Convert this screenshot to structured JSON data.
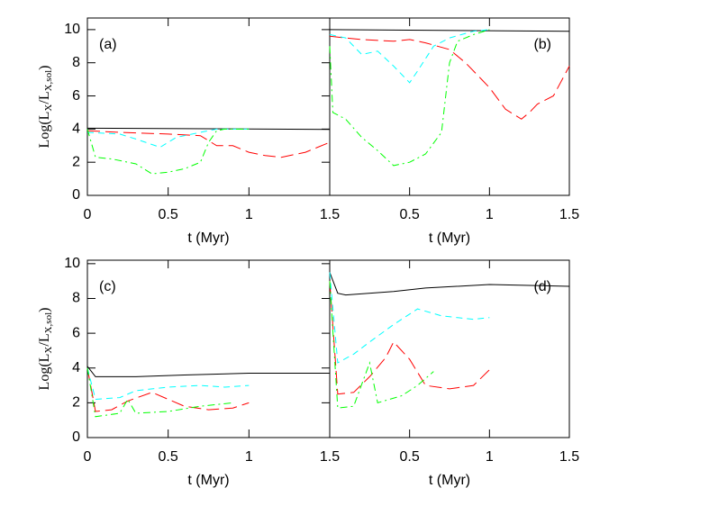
{
  "chart_data": [
    {
      "type": "line",
      "annotation": "(a)",
      "xlabel": "t (Myr)",
      "ylabel": [
        "Log(L",
        "X",
        "/L",
        "X,sol",
        ")"
      ],
      "xlim": [
        0,
        1.5
      ],
      "ylim": [
        0,
        10.7
      ],
      "xticks": [
        0,
        0.5,
        1,
        1.5
      ],
      "yticks": [
        0,
        2,
        4,
        6,
        8,
        10
      ],
      "series": [
        {
          "color": "#000000",
          "dash": "solid",
          "x": [
            0,
            1.5
          ],
          "values": [
            4.05,
            3.98
          ]
        },
        {
          "color": "#ff0000",
          "dash": "long-dash",
          "x": [
            0,
            0.2,
            0.5,
            0.7,
            0.8,
            0.9,
            1.0,
            1.1,
            1.2,
            1.35,
            1.5
          ],
          "values": [
            3.9,
            3.8,
            3.7,
            3.6,
            3.0,
            3.0,
            2.6,
            2.4,
            2.3,
            2.6,
            3.2
          ]
        },
        {
          "color": "#00ffff",
          "dash": "dash",
          "x": [
            0,
            0.2,
            0.3,
            0.45,
            0.55,
            0.7,
            0.8,
            1.0
          ],
          "values": [
            3.8,
            3.7,
            3.4,
            2.9,
            3.5,
            3.8,
            4.0,
            4.0
          ]
        },
        {
          "color": "#00ff00",
          "dash": "dash-dot",
          "x": [
            0,
            0.05,
            0.15,
            0.3,
            0.4,
            0.5,
            0.6,
            0.7,
            0.75,
            0.8,
            0.85,
            1.0
          ],
          "values": [
            4.0,
            2.3,
            2.2,
            1.9,
            1.3,
            1.4,
            1.6,
            2.0,
            3.2,
            3.9,
            4.0,
            4.0
          ]
        }
      ]
    },
    {
      "type": "line",
      "annotation": "(b)",
      "xlabel": "t (Myr)",
      "xlim": [
        0,
        1.5
      ],
      "ylim": [
        0,
        10.7
      ],
      "xticks": [
        0.5,
        1,
        1.5
      ],
      "series": [
        {
          "color": "#000000",
          "dash": "solid",
          "x": [
            0,
            1.5
          ],
          "values": [
            10.0,
            9.9
          ]
        },
        {
          "color": "#ff0000",
          "dash": "long-dash",
          "x": [
            0,
            0.2,
            0.4,
            0.5,
            0.6,
            0.75,
            0.85,
            0.95,
            1.0,
            1.1,
            1.2,
            1.25,
            1.3,
            1.4,
            1.5
          ],
          "values": [
            9.6,
            9.4,
            9.3,
            9.4,
            9.2,
            8.8,
            8.0,
            7.0,
            6.5,
            5.2,
            4.6,
            5.0,
            5.5,
            6.0,
            7.8
          ]
        },
        {
          "color": "#00ffff",
          "dash": "dash",
          "x": [
            0,
            0.1,
            0.2,
            0.3,
            0.4,
            0.5,
            0.55,
            0.65,
            0.75,
            0.9,
            1.0
          ],
          "values": [
            9.7,
            9.5,
            8.5,
            8.7,
            7.8,
            6.8,
            7.5,
            9.0,
            9.5,
            9.9,
            10.0
          ]
        },
        {
          "color": "#00ff00",
          "dash": "dash-dot",
          "x": [
            0,
            0.02,
            0.1,
            0.2,
            0.3,
            0.4,
            0.5,
            0.6,
            0.7,
            0.75,
            0.8,
            0.9,
            1.0
          ],
          "values": [
            9.0,
            5.0,
            4.6,
            3.5,
            2.7,
            1.8,
            2.0,
            2.5,
            3.8,
            8.0,
            9.3,
            9.7,
            10.0
          ]
        }
      ]
    },
    {
      "type": "line",
      "annotation": "(c)",
      "xlabel": "t (Myr)",
      "ylabel": [
        "Log(L",
        "X",
        "/L",
        "X,sol",
        ")"
      ],
      "xlim": [
        0,
        1.5
      ],
      "ylim": [
        0,
        10.2
      ],
      "xticks": [
        0,
        0.5,
        1,
        1.5
      ],
      "yticks": [
        0,
        2,
        4,
        6,
        8,
        10
      ],
      "series": [
        {
          "color": "#000000",
          "dash": "solid",
          "x": [
            0,
            0.05,
            0.3,
            0.6,
            1.0,
            1.5
          ],
          "values": [
            4.1,
            3.5,
            3.5,
            3.6,
            3.7,
            3.7
          ]
        },
        {
          "color": "#ff0000",
          "dash": "long-dash",
          "x": [
            0,
            0.05,
            0.15,
            0.25,
            0.4,
            0.5,
            0.6,
            0.75,
            0.9,
            1.0
          ],
          "values": [
            4.0,
            1.5,
            1.6,
            2.1,
            2.6,
            2.2,
            1.8,
            1.6,
            1.7,
            2.0
          ]
        },
        {
          "color": "#00ffff",
          "dash": "dash",
          "x": [
            0,
            0.05,
            0.2,
            0.3,
            0.5,
            0.7,
            0.85,
            1.0
          ],
          "values": [
            4.0,
            2.2,
            2.3,
            2.7,
            2.9,
            3.0,
            2.9,
            3.0
          ]
        },
        {
          "color": "#00ff00",
          "dash": "dash-dot",
          "x": [
            0,
            0.05,
            0.2,
            0.25,
            0.3,
            0.5,
            0.7,
            0.9
          ],
          "values": [
            4.0,
            1.2,
            1.4,
            2.2,
            1.4,
            1.5,
            1.8,
            2.0
          ]
        }
      ]
    },
    {
      "type": "line",
      "annotation": "(d)",
      "xlabel": "t (Myr)",
      "xlim": [
        0,
        1.5
      ],
      "ylim": [
        0,
        10.2
      ],
      "xticks": [
        0.5,
        1,
        1.5
      ],
      "series": [
        {
          "color": "#000000",
          "dash": "solid",
          "x": [
            0,
            0.05,
            0.1,
            0.4,
            0.6,
            1.0,
            1.5
          ],
          "values": [
            9.5,
            8.3,
            8.2,
            8.4,
            8.6,
            8.8,
            8.7
          ]
        },
        {
          "color": "#ff0000",
          "dash": "long-dash",
          "x": [
            0,
            0.05,
            0.15,
            0.25,
            0.35,
            0.4,
            0.5,
            0.6,
            0.75,
            0.9,
            1.0
          ],
          "values": [
            9.0,
            2.5,
            2.6,
            3.5,
            4.6,
            5.5,
            4.5,
            3.0,
            2.8,
            3.0,
            3.9
          ]
        },
        {
          "color": "#00ffff",
          "dash": "dash",
          "x": [
            0,
            0.05,
            0.15,
            0.25,
            0.4,
            0.55,
            0.7,
            0.9,
            1.0
          ],
          "values": [
            9.5,
            4.3,
            4.8,
            5.5,
            6.5,
            7.4,
            7.0,
            6.8,
            6.9
          ]
        },
        {
          "color": "#00ff00",
          "dash": "dash-dot",
          "x": [
            0,
            0.05,
            0.15,
            0.25,
            0.3,
            0.45,
            0.55,
            0.65
          ],
          "values": [
            9.0,
            1.7,
            1.8,
            4.3,
            2.0,
            2.4,
            3.0,
            3.8
          ]
        }
      ]
    }
  ]
}
